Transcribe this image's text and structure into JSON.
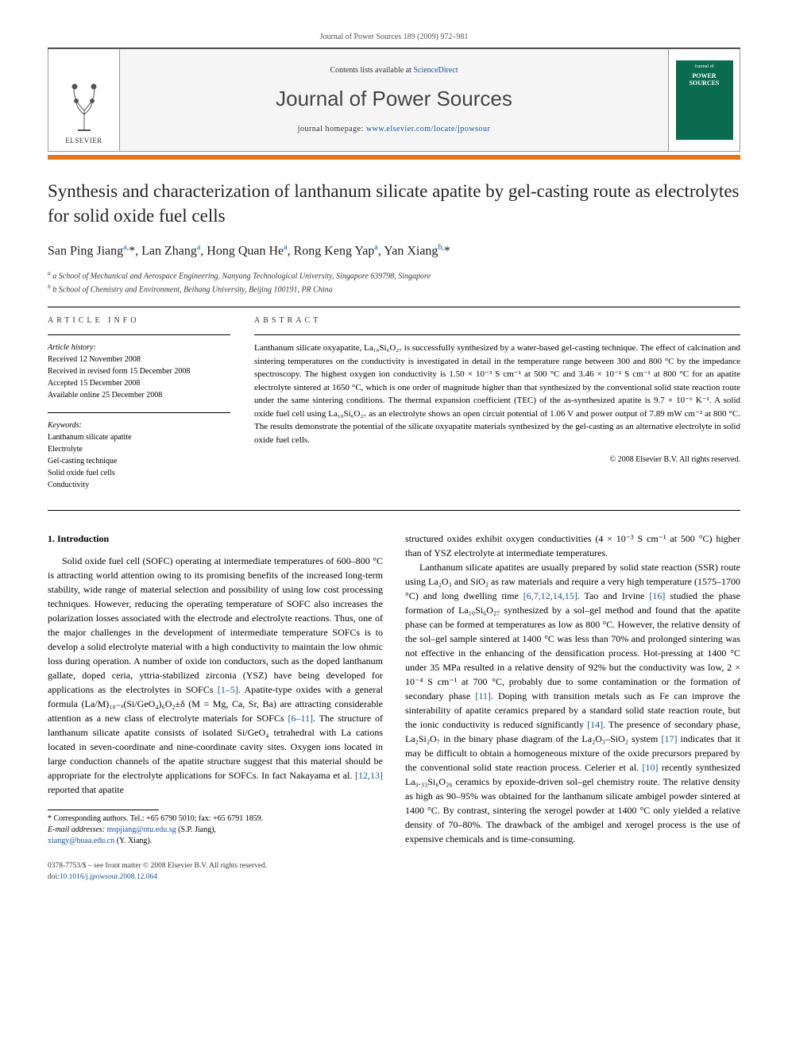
{
  "running_head": "Journal of Power Sources 189 (2009) 972–981",
  "journal_box": {
    "contents_prefix": "Contents lists available at ",
    "contents_link": "ScienceDirect",
    "journal_title": "Journal of Power Sources",
    "homepage_prefix": "journal homepage: ",
    "homepage_url": "www.elsevier.com/locate/jpowsour",
    "publisher_label": "ELSEVIER",
    "cover_text": "POWER SOURCES"
  },
  "article": {
    "title": "Synthesis and characterization of lanthanum silicate apatite by gel-casting route as electrolytes for solid oxide fuel cells",
    "authors_html": "San Ping Jiang<sup class=\"affmark\">a,</sup>*, Lan Zhang<sup class=\"affmark\">a</sup>, Hong Quan He<sup class=\"affmark\">a</sup>, Rong Keng Yap<sup class=\"affmark\">a</sup>, Yan Xiang<sup class=\"affmark\">b,</sup>*",
    "affiliations": [
      "a School of Mechanical and Aerospace Engineering, Nanyang Technological University, Singapore 639798, Singapore",
      "b School of Chemistry and Environment, Beihang University, Beijing 100191, PR China"
    ]
  },
  "info": {
    "label_info": "article info",
    "label_abstract": "abstract",
    "history_head": "Article history:",
    "history": [
      "Received 12 November 2008",
      "Received in revised form 15 December 2008",
      "Accepted 15 December 2008",
      "Available online 25 December 2008"
    ],
    "keywords_head": "Keywords:",
    "keywords": [
      "Lanthanum silicate apatite",
      "Electrolyte",
      "Gel-casting technique",
      "Solid oxide fuel cells",
      "Conductivity"
    ]
  },
  "abstract": "Lanthanum silicate oxyapatite, La₁₀Si₆O₂₇ is successfully synthesized by a water-based gel-casting technique. The effect of calcination and sintering temperatures on the conductivity is investigated in detail in the temperature range between 300 and 800 °C by the impedance spectroscopy. The highest oxygen ion conductivity is 1.50 × 10⁻³ S cm⁻¹ at 500 °C and 3.46 × 10⁻² S cm⁻¹ at 800 °C for an apatite electrolyte sintered at 1650 °C, which is one order of magnitude higher than that synthesized by the conventional solid state reaction route under the same sintering conditions. The thermal expansion coefficient (TEC) of the as-synthesized apatite is 9.7 × 10⁻⁶ K⁻¹. A solid oxide fuel cell using La₁₀Si₆O₂₇ as an electrolyte shows an open circuit potential of 1.06 V and power output of 7.89 mW cm⁻² at 800 °C. The results demonstrate the potential of the silicate oxyapatite materials synthesized by the gel-casting as an alternative electrolyte in solid oxide fuel cells.",
  "copyright": "© 2008 Elsevier B.V. All rights reserved.",
  "body": {
    "section_heading": "1. Introduction",
    "col1_p1": "Solid oxide fuel cell (SOFC) operating at intermediate temperatures of 600–800 °C is attracting world attention owing to its promising benefits of the increased long-term stability, wide range of material selection and possibility of using low cost processing techniques. However, reducing the operating temperature of SOFC also increases the polarization losses associated with the electrode and electrolyte reactions. Thus, one of the major challenges in the development of intermediate temperature SOFCs is to develop a solid electrolyte material with a high conductivity to maintain the low ohmic loss during operation. A number of oxide ion conductors, such as the doped lanthanum gallate, doped ceria, yttria-stabilized zirconia (YSZ) have being developed for applications as the electrolytes in SOFCs [1–5]. Apatite-type oxides with a general formula (La/M)₁₀₋ₓ(Si/GeO₄)₆O₂±δ (M = Mg, Ca, Sr, Ba) are attracting considerable attention as a new class of electrolyte materials for SOFCs [6–11]. The structure of lanthanum silicate apatite consists of isolated Si/GeO₄ tetrahedral with La cations located in seven-coordinate and nine-coordinate cavity sites. Oxygen ions located in large conduction channels of the apatite structure suggest that this material should be appropriate for the electrolyte applications for SOFCs. In fact Nakayama et al. [12,13] reported that apatite",
    "col2_p1": "structured oxides exhibit oxygen conductivities (4 × 10⁻³ S cm⁻¹ at 500 °C) higher than of YSZ electrolyte at intermediate temperatures.",
    "col2_p2": "Lanthanum silicate apatites are usually prepared by solid state reaction (SSR) route using La₂O₃ and SiO₂ as raw materials and require a very high temperature (1575–1700 °C) and long dwelling time [6,7,12,14,15]. Tao and Irvine [16] studied the phase formation of La₁₀Si₆O₂₇ synthesized by a sol–gel method and found that the apatite phase can be formed at temperatures as low as 800 °C. However, the relative density of the sol–gel sample sintered at 1400 °C was less than 70% and prolonged sintering was not effective in the enhancing of the densification process. Hot-pressing at 1400 °C under 35 MPa resulted in a relative density of 92% but the conductivity was low, 2 × 10⁻⁴ S cm⁻¹ at 700 °C, probably due to some contamination or the formation of secondary phase [11]. Doping with transition metals such as Fe can improve the sinterability of apatite ceramics prepared by a standard solid state reaction route, but the ionic conductivity is reduced significantly [14]. The presence of secondary phase, La₂Si₂O₇ in the binary phase diagram of the La₂O₃–SiO₂ system [17] indicates that it may be difficult to obtain a homogeneous mixture of the oxide precursors prepared by the conventional solid state reaction process. Celerier et al. [10] recently synthesized La₉.₃₃Si₆O₂₆ ceramics by epoxide-driven sol–gel chemistry route. The relative density as high as 90–95% was obtained for the lanthanum silicate ambigel powder sintered at 1400 °C. By contrast, sintering the xerogel powder at 1400 °C only yielded a relative density of 70–80%. The drawback of the ambigel and xerogel process is the use of expensive chemicals and is time-consuming."
  },
  "footnotes": {
    "corr": "* Corresponding authors. Tel.: +65 6790 5010; fax: +65 6791 1859.",
    "email_label": "E-mail addresses:",
    "email1": "mspjiang@ntu.edu.sg",
    "email1_who": " (S.P. Jiang),",
    "email2": "xiangy@buaa.edu.cn",
    "email2_who": " (Y. Xiang)."
  },
  "bottom": {
    "left1": "0378-7753/$ – see front matter © 2008 Elsevier B.V. All rights reserved.",
    "left2_label": "doi:",
    "left2_link": "10.1016/j.jpowsour.2008.12.064"
  },
  "colors": {
    "accent_orange": "#e67514",
    "link_blue": "#1a4f9c",
    "cover_green": "#0b6b4f",
    "box_bg": "#f5f5f5",
    "text": "#000000"
  },
  "typography": {
    "body_pt": 12,
    "title_pt": 23,
    "authors_pt": 16,
    "small_pt": 10,
    "journal_title_pt": 26
  }
}
